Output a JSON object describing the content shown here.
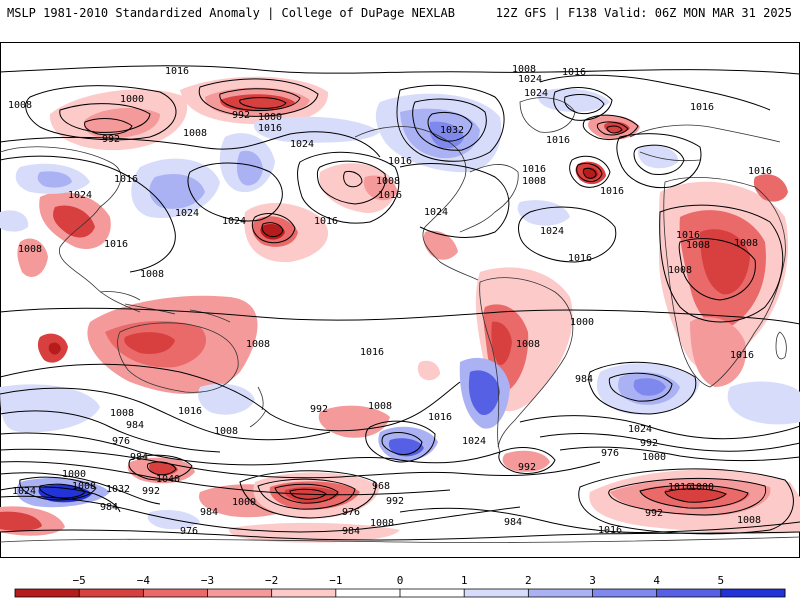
{
  "header": {
    "left_title": "MSLP 1981-2010 Standardized Anomaly | College of DuPage NEXLAB",
    "right_title": "12Z GFS | F138 Valid: 06Z MON MAR 31 2025"
  },
  "colors": {
    "neg5": "#b71c1c",
    "neg4": "#d84040",
    "neg3": "#ea6a6a",
    "neg2": "#f59a9a",
    "neg1": "#fdcaca",
    "zero": "#ffffff",
    "pos1": "#d8dcfb",
    "pos2": "#aab2f4",
    "pos3": "#7f88ec",
    "pos4": "#5560e4",
    "pos5": "#2233d8",
    "contour": "#000000",
    "coast": "#333333"
  },
  "colorbar": {
    "ticks": [
      "−5",
      "−4",
      "−3",
      "−2",
      "−1",
      "0",
      "1",
      "2",
      "3",
      "4",
      "5"
    ]
  },
  "contour_labels": [
    {
      "id": "c1",
      "text": "1008"
    },
    {
      "id": "c2",
      "text": "1000"
    },
    {
      "id": "c3",
      "text": "992"
    },
    {
      "id": "c4",
      "text": "1016"
    },
    {
      "id": "c5",
      "text": "992"
    },
    {
      "id": "c6",
      "text": "1000"
    },
    {
      "id": "c7",
      "text": "1008"
    },
    {
      "id": "c8",
      "text": "1024"
    },
    {
      "id": "c9",
      "text": "1016"
    },
    {
      "id": "c10",
      "text": "1024"
    },
    {
      "id": "c11",
      "text": "1024"
    },
    {
      "id": "c12",
      "text": "1016"
    },
    {
      "id": "c13",
      "text": "1008"
    },
    {
      "id": "c14",
      "text": "1016"
    },
    {
      "id": "c15",
      "text": "1024"
    },
    {
      "id": "c16",
      "text": "1016"
    },
    {
      "id": "c17",
      "text": "1024"
    },
    {
      "id": "c18",
      "text": "1008"
    },
    {
      "id": "c19",
      "text": "1016"
    },
    {
      "id": "c20",
      "text": "1008"
    },
    {
      "id": "c21",
      "text": "1016"
    },
    {
      "id": "c22",
      "text": "1024"
    },
    {
      "id": "c23",
      "text": "1032"
    },
    {
      "id": "c24",
      "text": "1024"
    },
    {
      "id": "c25",
      "text": "1016"
    },
    {
      "id": "c26",
      "text": "1016"
    },
    {
      "id": "c27",
      "text": "1008"
    },
    {
      "id": "c28",
      "text": "1016"
    },
    {
      "id": "c29",
      "text": "1024"
    },
    {
      "id": "c30",
      "text": "1016"
    },
    {
      "id": "c31",
      "text": "1016"
    },
    {
      "id": "c32",
      "text": "1008"
    },
    {
      "id": "c33",
      "text": "1008"
    },
    {
      "id": "c34",
      "text": "1008"
    },
    {
      "id": "c35",
      "text": "1016"
    },
    {
      "id": "c36",
      "text": "1016"
    },
    {
      "id": "c37",
      "text": "1008"
    },
    {
      "id": "c38",
      "text": "1016"
    },
    {
      "id": "c39",
      "text": "1008"
    },
    {
      "id": "c40",
      "text": "1016"
    },
    {
      "id": "c41",
      "text": "1008"
    },
    {
      "id": "c42",
      "text": "1000"
    },
    {
      "id": "c43",
      "text": "1016"
    },
    {
      "id": "c44",
      "text": "984"
    },
    {
      "id": "c45",
      "text": "1024"
    },
    {
      "id": "c46",
      "text": "1016"
    },
    {
      "id": "c47",
      "text": "1008"
    },
    {
      "id": "c48",
      "text": "1008"
    },
    {
      "id": "c49",
      "text": "1016"
    },
    {
      "id": "c50",
      "text": "992"
    },
    {
      "id": "c51",
      "text": "1024"
    },
    {
      "id": "c52",
      "text": "1008"
    },
    {
      "id": "c53",
      "text": "992"
    },
    {
      "id": "c54",
      "text": "1000"
    },
    {
      "id": "c55",
      "text": "984"
    },
    {
      "id": "c56",
      "text": "976"
    },
    {
      "id": "c57",
      "text": "984"
    },
    {
      "id": "c58",
      "text": "1000"
    },
    {
      "id": "c59",
      "text": "1024"
    },
    {
      "id": "c60",
      "text": "1008"
    },
    {
      "id": "c61",
      "text": "1032"
    },
    {
      "id": "c62",
      "text": "992"
    },
    {
      "id": "c63",
      "text": "1040"
    },
    {
      "id": "c64",
      "text": "984"
    },
    {
      "id": "c65",
      "text": "1000"
    },
    {
      "id": "c66",
      "text": "984"
    },
    {
      "id": "c67",
      "text": "968"
    },
    {
      "id": "c68",
      "text": "976"
    },
    {
      "id": "c69",
      "text": "992"
    },
    {
      "id": "c70",
      "text": "1008"
    },
    {
      "id": "c71",
      "text": "984"
    },
    {
      "id": "c72",
      "text": "992"
    },
    {
      "id": "c73",
      "text": "984"
    },
    {
      "id": "c74",
      "text": "976"
    },
    {
      "id": "c75",
      "text": "1000"
    },
    {
      "id": "c76",
      "text": "992"
    },
    {
      "id": "c77",
      "text": "1008"
    },
    {
      "id": "c78",
      "text": "1016"
    },
    {
      "id": "c79",
      "text": "976"
    },
    {
      "id": "c80",
      "text": "1016"
    }
  ]
}
